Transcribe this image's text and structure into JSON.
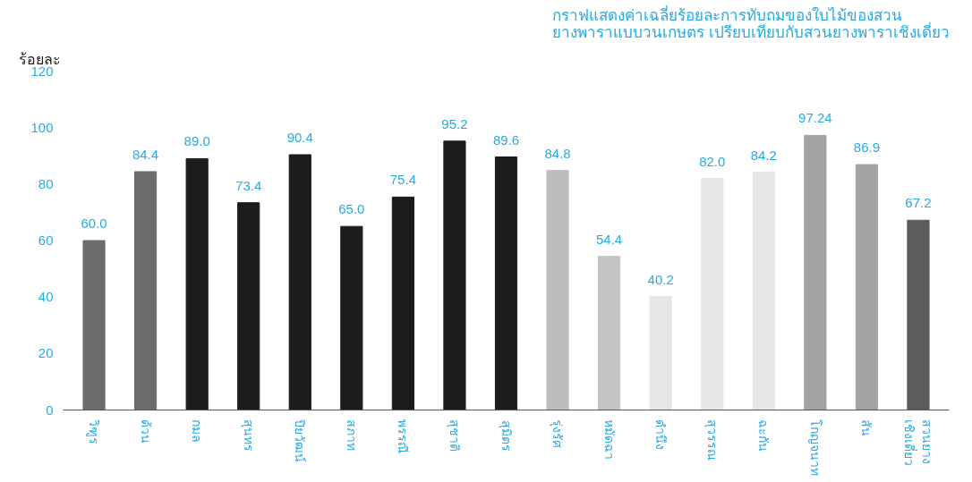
{
  "chart_data": {
    "type": "bar",
    "title": "กราฟแสดงค่าเฉลี่ยร้อยละการทับถมของใบไม้ของสวน\nยางพาราแบบวนเกษตร เปรียบเทียบกับสวนยางพาราเชิงเดี่ยว",
    "ylabel": "ร้อยละ",
    "categories": [
      "วิฑูร",
      "ด้วน",
      "กมล",
      "สุนทร",
      "ปิยวัฒน์",
      "สภาท",
      "พรรณี",
      "สุชาติ",
      "สุมิตร",
      "รุ่งรัศ",
      "หมัดฉา",
      "ดำนึง",
      "สุวรรณ",
      "ฉะกัน",
      "โกญจนาท",
      "สัน",
      "สวนยาง\nเชิงเดี่ยว"
    ],
    "values": [
      60.0,
      84.4,
      89.0,
      73.4,
      90.4,
      65.0,
      75.4,
      95.2,
      89.6,
      84.8,
      54.4,
      40.2,
      82.0,
      84.2,
      97.24,
      86.9,
      67.2
    ],
    "value_labels": [
      "60.0",
      "84.4",
      "89.0",
      "73.4",
      "90.4",
      "65.0",
      "75.4",
      "95.2",
      "89.6",
      "84.8",
      "54.4",
      "40.2",
      "82.0",
      "84.2",
      "97.24",
      "86.9",
      "67.2"
    ],
    "colors": [
      "#6d6d6d",
      "#6d6d6d",
      "#1c1c1c",
      "#1c1c1c",
      "#1c1c1c",
      "#1c1c1c",
      "#1c1c1c",
      "#1c1c1c",
      "#1c1c1c",
      "#bdbdbd",
      "#c4c4c4",
      "#e6e6e6",
      "#e6e6e6",
      "#e6e6e6",
      "#a3a3a3",
      "#a3a3a3",
      "#5c5c5c"
    ],
    "ylim": [
      0,
      120
    ],
    "yticks": [
      0,
      20,
      40,
      60,
      80,
      100,
      120
    ],
    "grid": false
  }
}
